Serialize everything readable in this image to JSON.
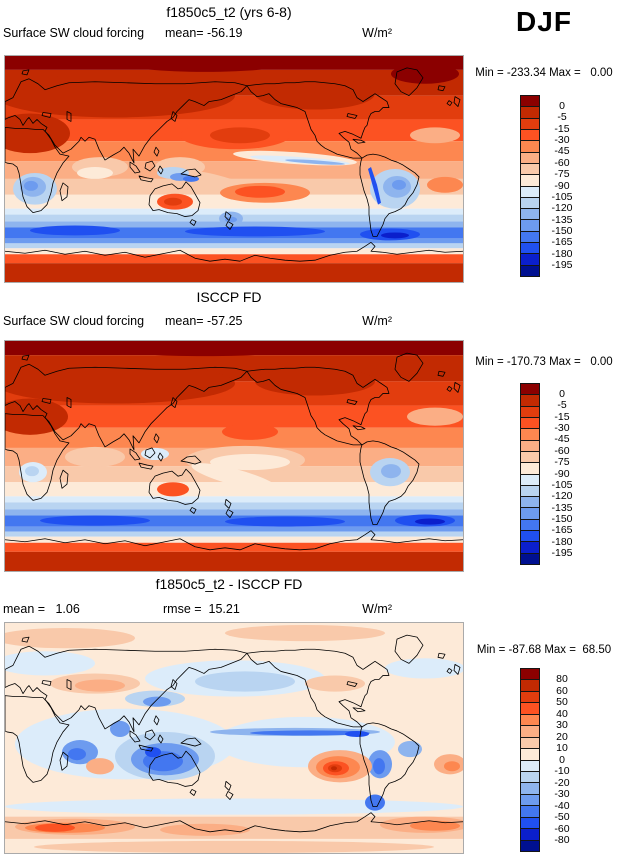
{
  "season_label": "DJF",
  "palette": [
    "#8b0000",
    "#c22a02",
    "#e23d0e",
    "#fc5222",
    "#fd8750",
    "#fbae85",
    "#f9c9aa",
    "#fdead8",
    "#dcecfa",
    "#b9d4f1",
    "#8eb4ee",
    "#6d9bef",
    "#4377f0",
    "#2050f0",
    "#0b1fcc",
    "#001090"
  ],
  "panels": [
    {
      "title": "f1850c5_t2 (yrs 6-8)",
      "left_label": "Surface SW cloud forcing",
      "center_stat": "mean= -56.19",
      "units": "W/m²",
      "minmax": "Min = -233.34 Max =   0.00",
      "colorbar_labels": [
        "0",
        "-5",
        "-15",
        "-30",
        "-45",
        "-60",
        "-75",
        "-90",
        "-105",
        "-120",
        "-135",
        "-150",
        "-165",
        "-180",
        "-195"
      ]
    },
    {
      "title": "ISCCP FD",
      "left_label": "Surface SW cloud forcing",
      "center_stat": "mean= -57.25",
      "units": "W/m²",
      "minmax": "Min = -170.73 Max =   0.00",
      "colorbar_labels": [
        "0",
        "-5",
        "-15",
        "-30",
        "-45",
        "-60",
        "-75",
        "-90",
        "-105",
        "-120",
        "-135",
        "-150",
        "-165",
        "-180",
        "-195"
      ]
    },
    {
      "title": "f1850c5_t2 - ISCCP FD",
      "left_label": "mean =   1.06",
      "center_stat": "rmse =  15.21",
      "units": "W/m²",
      "minmax": "Min = -87.68 Max =  68.50",
      "colorbar_labels": [
        "80",
        "60",
        "50",
        "40",
        "30",
        "20",
        "10",
        "0",
        "-10",
        "-20",
        "-30",
        "-40",
        "-50",
        "-60",
        "-80"
      ]
    }
  ],
  "chart_data": [
    {
      "type": "heatmap",
      "title": "f1850c5_t2 (yrs 6-8)",
      "variable": "Surface SW cloud forcing",
      "season": "DJF",
      "units": "W/m²",
      "mean": -56.19,
      "min": -233.34,
      "max": 0.0,
      "contour_levels": [
        0,
        -5,
        -15,
        -30,
        -45,
        -60,
        -75,
        -90,
        -105,
        -120,
        -135,
        -150,
        -165,
        -180,
        -195
      ],
      "projection": "global cylindrical lat-lon, longitude 0-360E, latitude 90N-90S",
      "legend_position": "right",
      "colormap": "dark red (near 0) through orange and pale peach to dark navy blue (-195)"
    },
    {
      "type": "heatmap",
      "title": "ISCCP FD",
      "variable": "Surface SW cloud forcing",
      "season": "DJF",
      "units": "W/m²",
      "mean": -57.25,
      "min": -170.73,
      "max": 0.0,
      "contour_levels": [
        0,
        -5,
        -15,
        -30,
        -45,
        -60,
        -75,
        -90,
        -105,
        -120,
        -135,
        -150,
        -165,
        -180,
        -195
      ],
      "projection": "global cylindrical lat-lon, longitude 0-360E, latitude 90N-90S",
      "legend_position": "right",
      "colormap": "dark red (near 0) through orange and pale peach to dark navy blue (-195)"
    },
    {
      "type": "heatmap",
      "title": "f1850c5_t2 - ISCCP FD",
      "variable": "Surface SW cloud forcing difference",
      "season": "DJF",
      "units": "W/m²",
      "mean": 1.06,
      "rmse": 15.21,
      "min": -87.68,
      "max": 68.5,
      "contour_levels": [
        80,
        60,
        50,
        40,
        30,
        20,
        10,
        0,
        -10,
        -20,
        -30,
        -40,
        -50,
        -60,
        -80
      ],
      "projection": "global cylindrical lat-lon, longitude 0-360E, latitude 90N-90S",
      "legend_position": "right",
      "colormap": "red positive differences, blue negative differences, pale near zero"
    }
  ]
}
